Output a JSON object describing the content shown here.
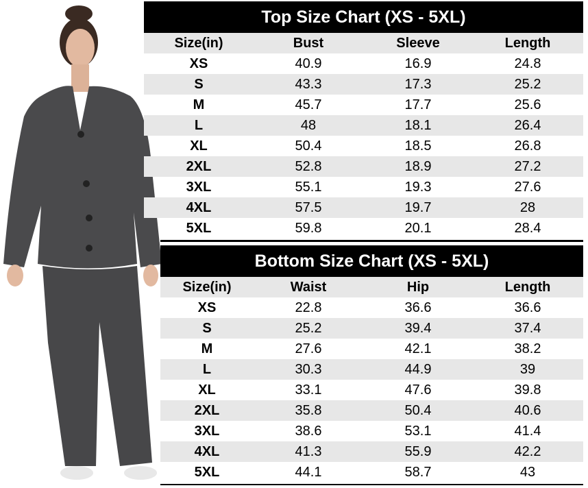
{
  "top_chart": {
    "title": "Top Size Chart (XS - 5XL)",
    "columns": [
      "Size(in)",
      "Bust",
      "Sleeve",
      "Length"
    ],
    "rows": [
      [
        "XS",
        "40.9",
        "16.9",
        "24.8"
      ],
      [
        "S",
        "43.3",
        "17.3",
        "25.2"
      ],
      [
        "M",
        "45.7",
        "17.7",
        "25.6"
      ],
      [
        "L",
        "48",
        "18.1",
        "26.4"
      ],
      [
        "XL",
        "50.4",
        "18.5",
        "26.8"
      ],
      [
        "2XL",
        "52.8",
        "18.9",
        "27.2"
      ],
      [
        "3XL",
        "55.1",
        "19.3",
        "27.6"
      ],
      [
        "4XL",
        "57.5",
        "19.7",
        "28"
      ],
      [
        "5XL",
        "59.8",
        "20.1",
        "28.4"
      ]
    ]
  },
  "bottom_chart": {
    "title": "Bottom Size Chart (XS - 5XL)",
    "columns": [
      "Size(in)",
      "Waist",
      "Hip",
      "Length"
    ],
    "rows": [
      [
        "XS",
        "22.8",
        "36.6",
        "36.6"
      ],
      [
        "S",
        "25.2",
        "39.4",
        "37.4"
      ],
      [
        "M",
        "27.6",
        "42.1",
        "38.2"
      ],
      [
        "L",
        "30.3",
        "44.9",
        "39"
      ],
      [
        "XL",
        "33.1",
        "47.6",
        "39.8"
      ],
      [
        "2XL",
        "35.8",
        "50.4",
        "40.6"
      ],
      [
        "3XL",
        "38.6",
        "53.1",
        "41.4"
      ],
      [
        "4XL",
        "41.3",
        "55.9",
        "42.2"
      ],
      [
        "5XL",
        "44.1",
        "58.7",
        "43"
      ]
    ]
  },
  "colors": {
    "title_bg": "#000000",
    "stripe": "#e7e7e7",
    "garment": "#4a4a4c"
  }
}
